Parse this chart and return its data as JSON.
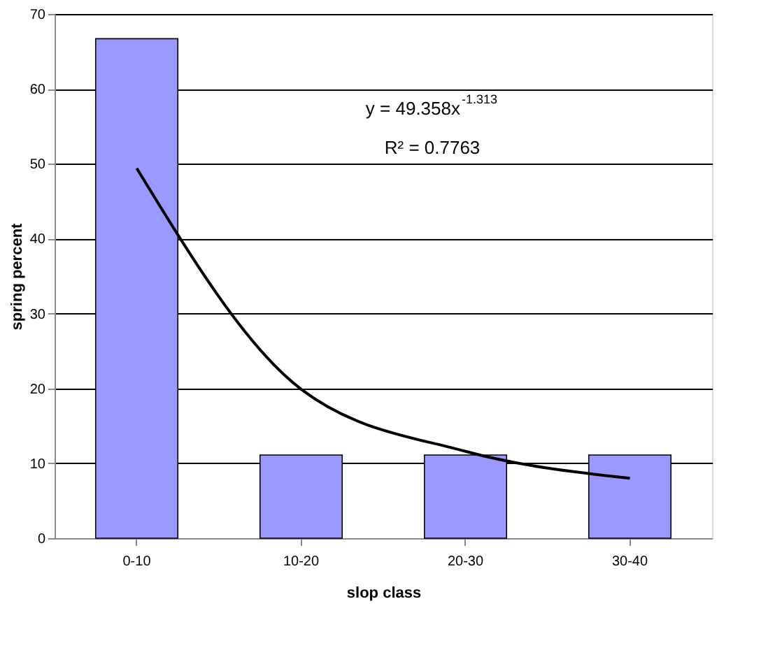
{
  "chart_data": {
    "type": "bar",
    "xlabel": "slop class",
    "ylabel": "spring percent",
    "categories": [
      "0-10",
      "10-20",
      "20-30",
      "30-40"
    ],
    "series": [
      {
        "color": "#9999ff",
        "values": [
          66.7,
          11.1,
          11.1,
          11.1
        ]
      },
      {
        "type": "line",
        "color": "#000000",
        "values": [
          49.4,
          19.9,
          11.6,
          8.0
        ]
      }
    ],
    "ylim": [
      0,
      70
    ],
    "yticks": [
      0,
      10,
      20,
      30,
      40,
      50,
      60,
      70
    ],
    "grid": "y",
    "annotations": [
      "y = 49.358x$^{-1.313}$",
      "R² = 0.7763"
    ]
  }
}
